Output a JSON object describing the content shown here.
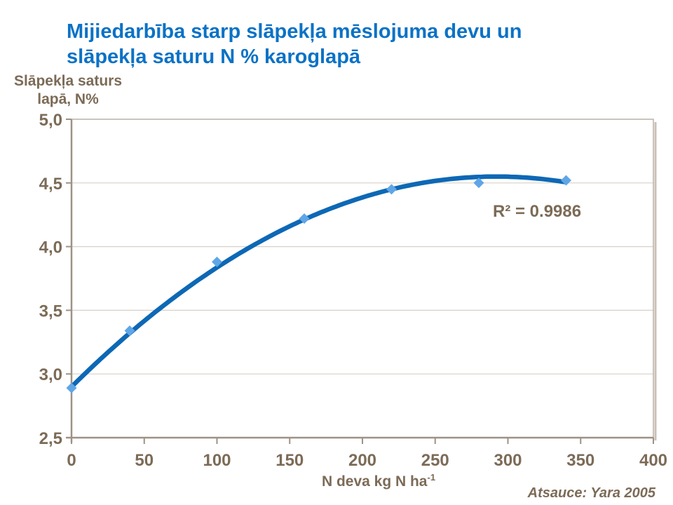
{
  "title": {
    "line1": "Mijiedarbība starp slāpekļa mēslojuma devu un",
    "line2": "slāpekļa saturu N % karoglapā"
  },
  "attribution": "Atsauce: Yara 2005",
  "colors": {
    "title_text": "#0b72c6",
    "line": "#0d68b5",
    "marker": "#5fa6e7",
    "axis_text": "#7c6b57",
    "grid_line": "#d9d1c8",
    "axis_line": "#9d9285",
    "plot_border": "#bbb1a6",
    "border_shadow": "#c9c0b6",
    "background": "#ffffff"
  },
  "chart_data": {
    "type": "scatter",
    "title": "Mijiedarbība starp slāpekļa mēslojuma devu un slāpekļa saturu N % karoglapā",
    "x": [
      0,
      40,
      100,
      160,
      220,
      280,
      340
    ],
    "y": [
      2.89,
      3.34,
      3.88,
      4.22,
      4.45,
      4.5,
      4.52
    ],
    "marker": "diamond",
    "xlabel_main": "N deva kg N ha",
    "xlabel_sup": "-1",
    "ylabel_line1": "Slāpekļa saturs",
    "ylabel_line2": "lapā, N%",
    "xlim": [
      0,
      400
    ],
    "ylim": [
      2.5,
      5.0
    ],
    "xticks": [
      0,
      50,
      100,
      150,
      200,
      250,
      300,
      350,
      400
    ],
    "xtick_labels": [
      "0",
      "50",
      "100",
      "150",
      "200",
      "250",
      "300",
      "350",
      "400"
    ],
    "yticks": [
      2.5,
      3.0,
      3.5,
      4.0,
      4.5,
      5.0
    ],
    "ytick_labels": [
      "2,5",
      "3,0",
      "3,5",
      "4,0",
      "4,5",
      "5,0"
    ],
    "grid": "horizontal",
    "legend": "none",
    "trendline": {
      "type": "quadratic",
      "vertex_x": 292,
      "vertex_y": 4.55,
      "coeff": -1.936e-05,
      "x_start": 0,
      "x_end": 340
    },
    "r2_label": "R² = 0.9986"
  }
}
